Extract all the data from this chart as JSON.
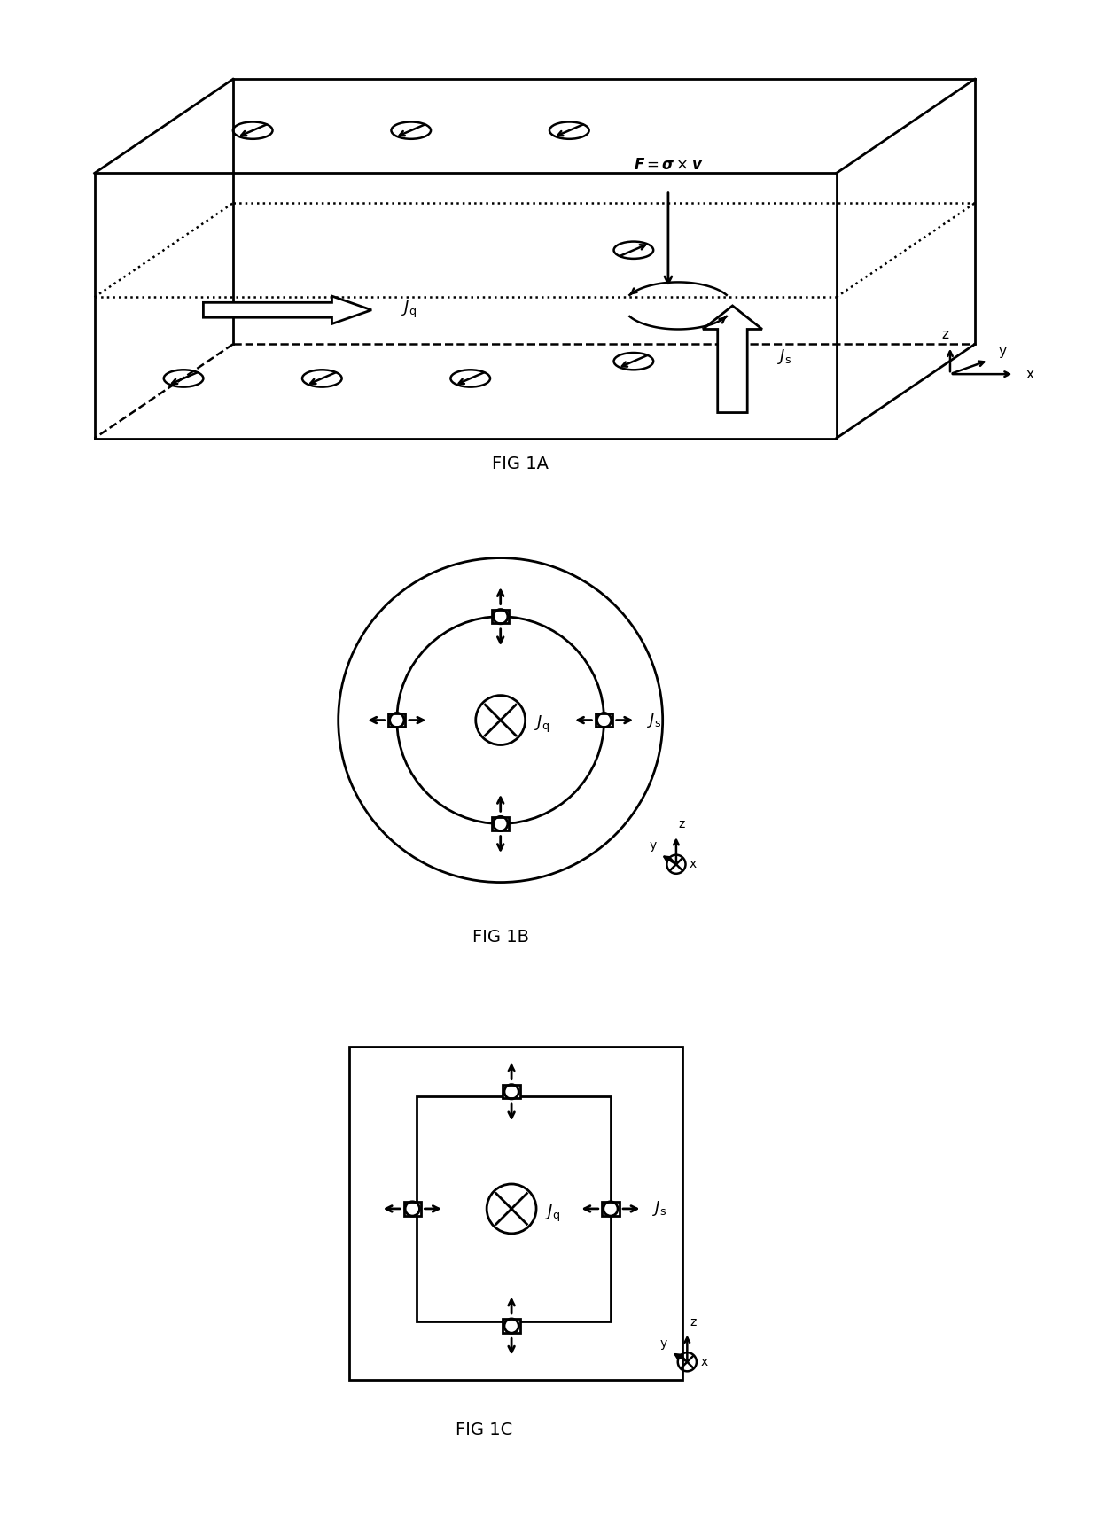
{
  "fig_width": 12.4,
  "fig_height": 17.23,
  "bg_color": "#ffffff",
  "line_color": "#000000",
  "fig1a_label": "FIG 1A",
  "fig1b_label": "FIG 1B",
  "fig1c_label": "FIG 1C"
}
